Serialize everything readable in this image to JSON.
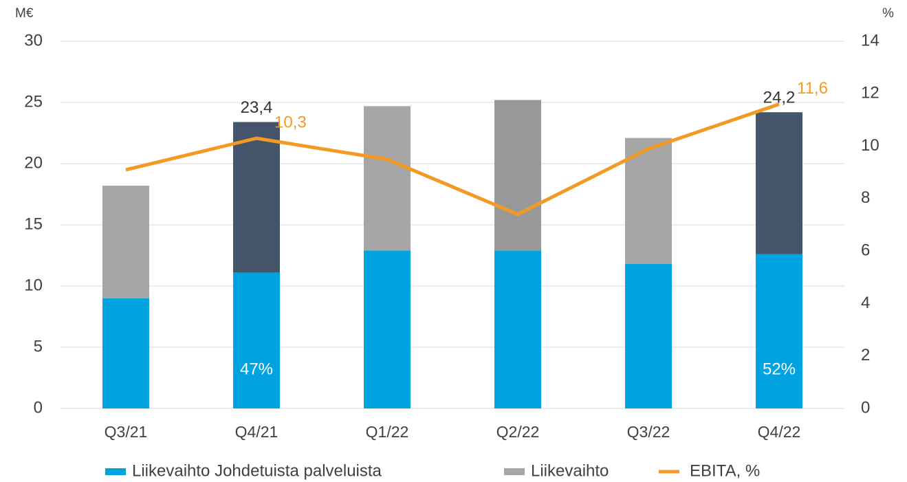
{
  "chart_data": {
    "type": "bar",
    "stacked": true,
    "y_label": "M€",
    "y2_label": "%",
    "categories": [
      "Q3/21",
      "Q4/21",
      "Q1/22",
      "Q2/22",
      "Q3/22",
      "Q4/22"
    ],
    "series": [
      {
        "name": "Liikevaihto Johdetuista palveluista",
        "color": "#00a3e0",
        "axis": "y",
        "values": [
          9.0,
          11.1,
          12.9,
          12.9,
          11.8,
          12.6
        ]
      },
      {
        "name": "Liikevaihto",
        "color": "#a6a6a6",
        "axis": "y",
        "colors": [
          "#a6a6a6",
          "#44546a",
          "#a6a6a6",
          "#999999",
          "#a6a6a6",
          "#44546a"
        ],
        "values": [
          9.2,
          12.3,
          11.8,
          12.3,
          10.3,
          11.6
        ]
      },
      {
        "name": "EBITA, %",
        "color": "#f39a25",
        "axis": "y2",
        "type": "line",
        "values": [
          9.1,
          10.3,
          9.5,
          7.4,
          9.9,
          11.6
        ],
        "value_labels": [
          null,
          "10,3",
          null,
          null,
          null,
          "11,6"
        ]
      }
    ],
    "total_labels": [
      null,
      "23,4",
      null,
      null,
      null,
      "24,2"
    ],
    "share_labels": [
      null,
      "47%",
      null,
      null,
      null,
      "52%"
    ],
    "ylim": [
      0,
      30
    ],
    "yticks": [
      0,
      5,
      10,
      15,
      20,
      25,
      30
    ],
    "y2lim": [
      0,
      14
    ],
    "y2ticks": [
      0,
      2,
      4,
      6,
      8,
      10,
      12,
      14
    ],
    "grid": true,
    "legend": "bottom"
  }
}
